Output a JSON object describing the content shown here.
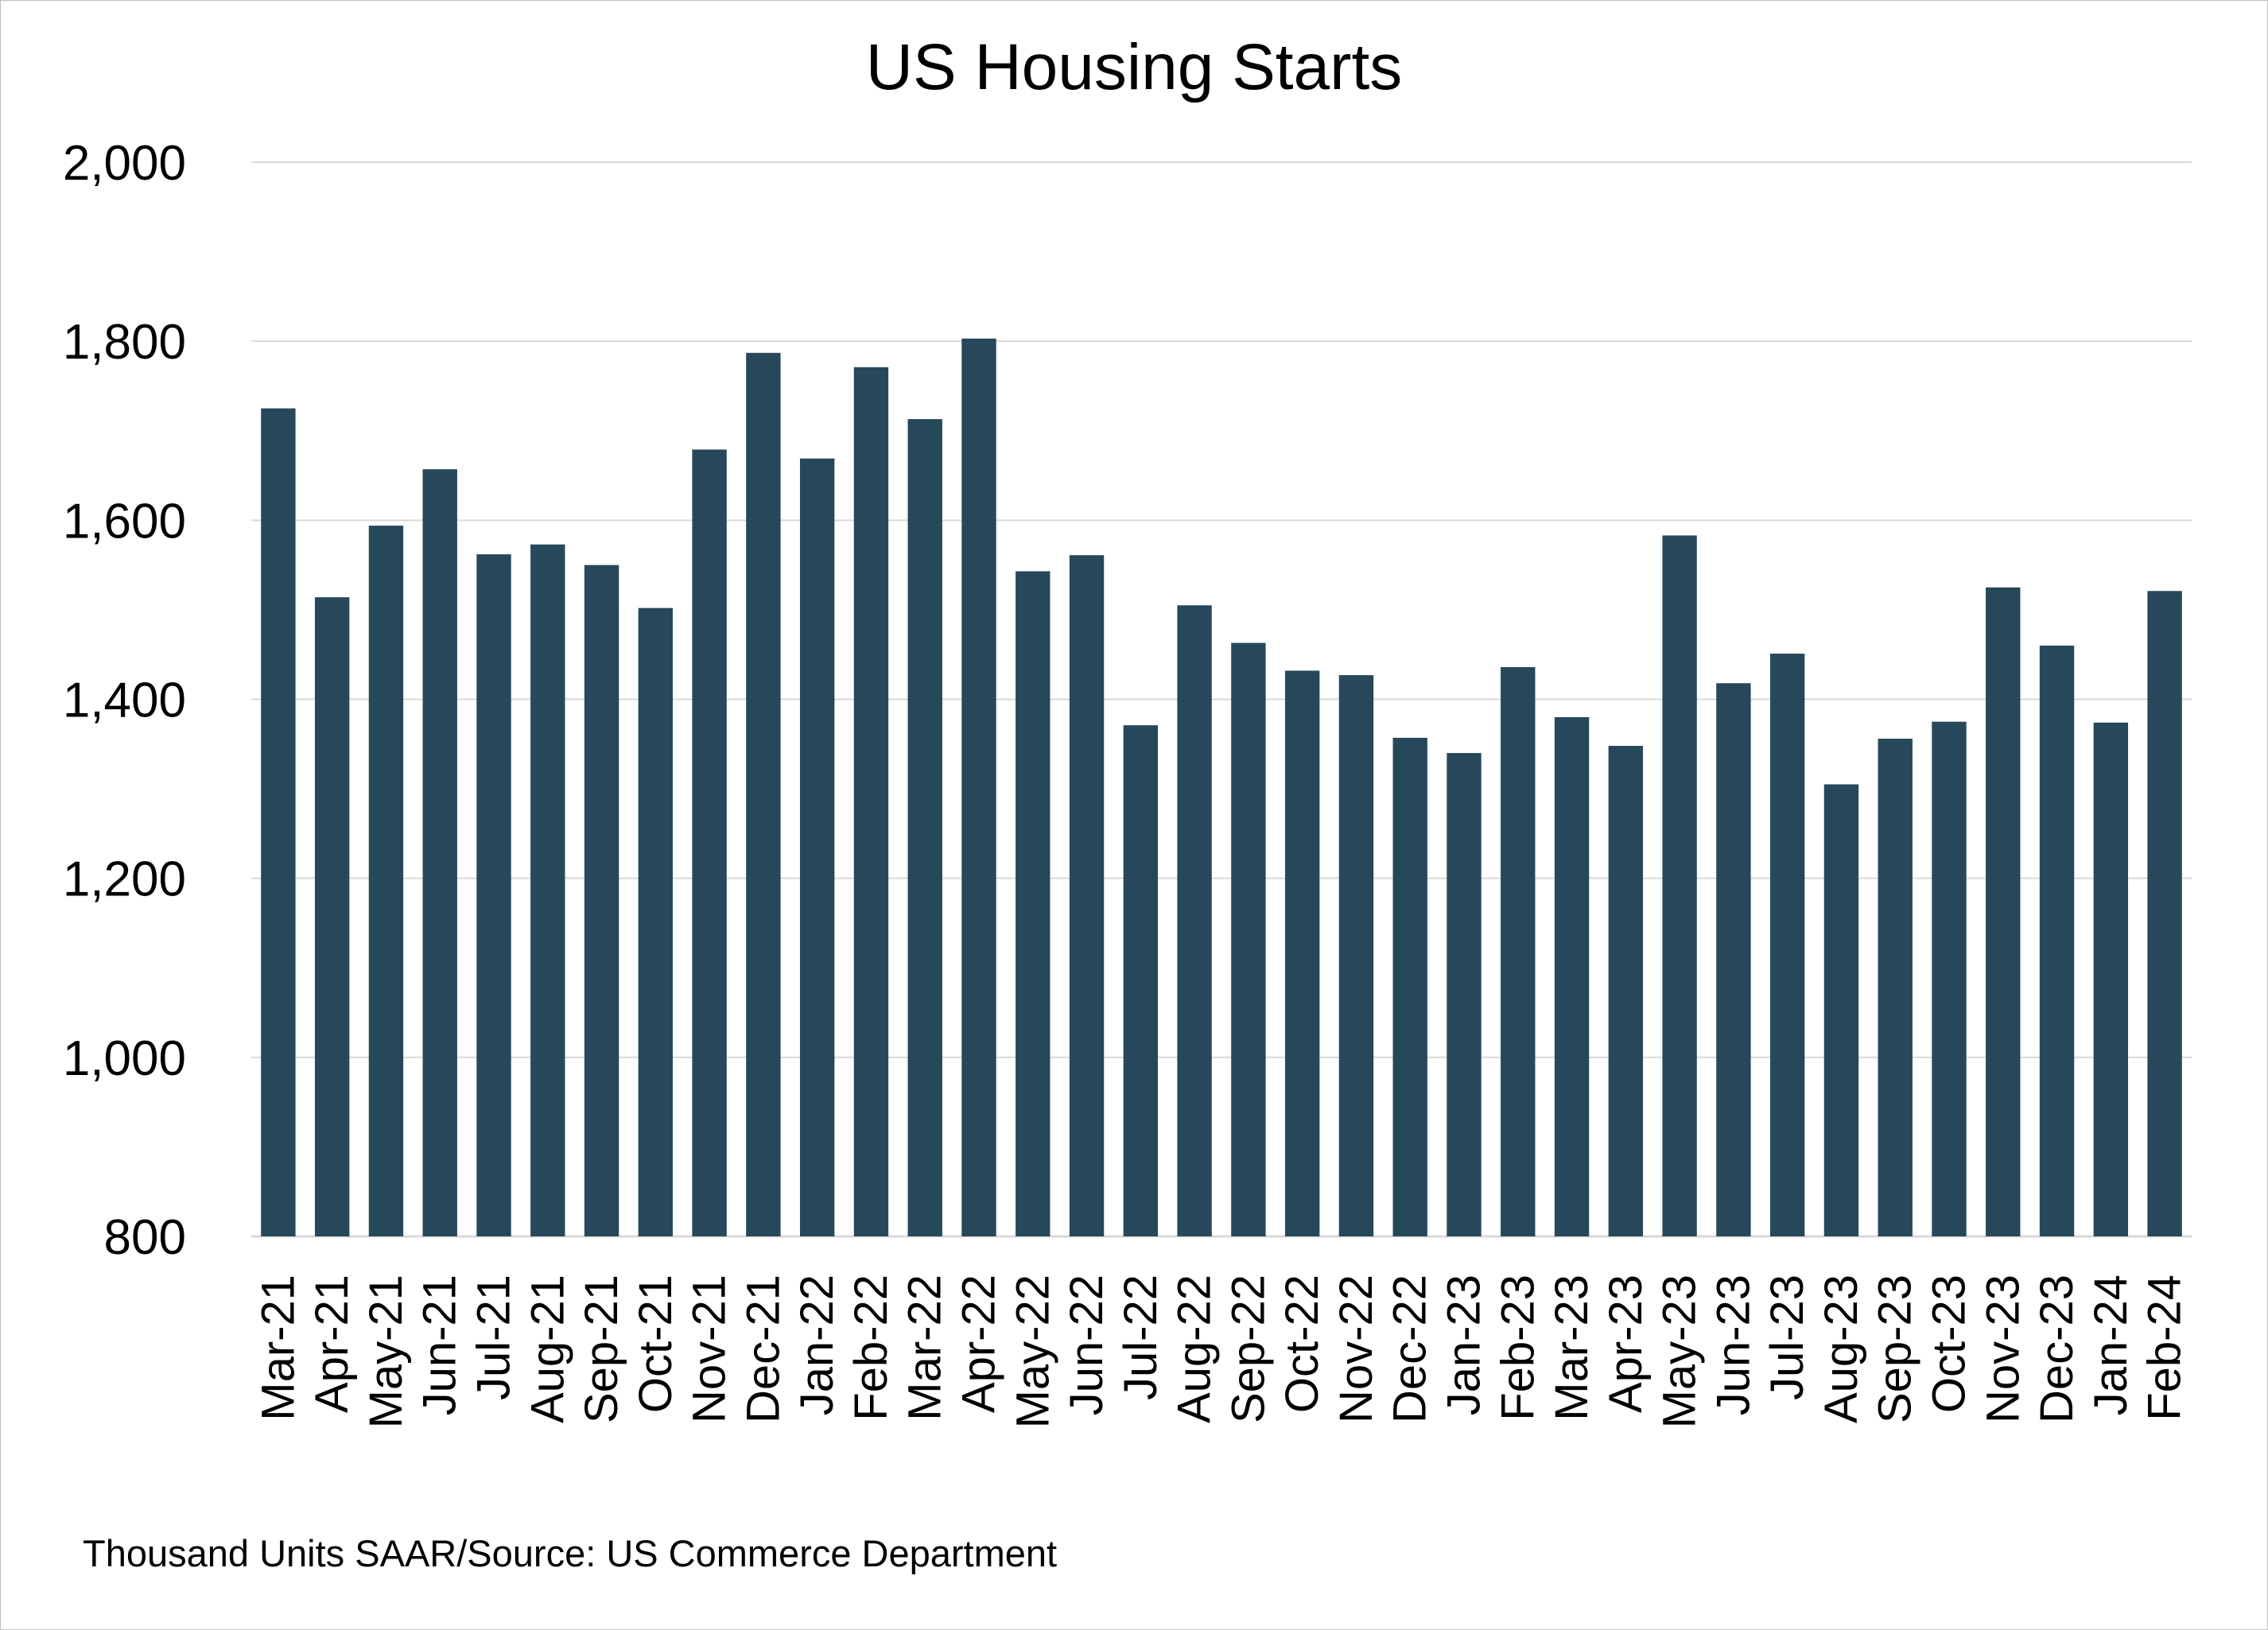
{
  "chart_data": {
    "type": "bar",
    "title": "US Housing Starts",
    "xlabel": "",
    "ylabel": "",
    "ylim": [
      800,
      2000
    ],
    "yticks": [
      800,
      1000,
      1200,
      1400,
      1600,
      1800,
      2000
    ],
    "ytick_labels": [
      "800",
      "1,000",
      "1,200",
      "1,400",
      "1,600",
      "1,800",
      "2,000"
    ],
    "grid": "horizontal",
    "legend": "none",
    "bar_color": "#27485a",
    "grid_color": "#d9d9d9",
    "categories": [
      "Mar-21",
      "Apr-21",
      "May-21",
      "Jun-21",
      "Jul-21",
      "Aug-21",
      "Sep-21",
      "Oct-21",
      "Nov-21",
      "Dec-21",
      "Jan-22",
      "Feb-22",
      "Mar-22",
      "Apr-22",
      "May-22",
      "Jun-22",
      "Jul-22",
      "Aug-22",
      "Sep-22",
      "Oct-22",
      "Nov-22",
      "Dec-22",
      "Jan-23",
      "Feb-23",
      "Mar-23",
      "Apr-23",
      "May-23",
      "Jun-23",
      "Jul-23",
      "Aug-23",
      "Sep-23",
      "Oct-23",
      "Nov-23",
      "Dec-23",
      "Jan-24",
      "Feb-24"
    ],
    "values": [
      1725,
      1514,
      1594,
      1657,
      1562,
      1573,
      1550,
      1502,
      1679,
      1787,
      1669,
      1771,
      1713,
      1803,
      1543,
      1561,
      1371,
      1505,
      1463,
      1432,
      1427,
      1357,
      1340,
      1436,
      1380,
      1348,
      1583,
      1418,
      1451,
      1305,
      1356,
      1375,
      1525,
      1460,
      1374,
      1521
    ]
  },
  "footnote": "Thousand Units SAAR/Source: US Commerce Department"
}
